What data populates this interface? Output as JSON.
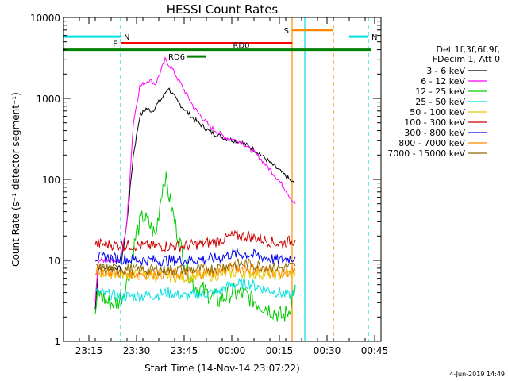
{
  "chart_data": {
    "type": "line",
    "title": "HESSI Count Rates",
    "xlabel": "Start Time (14-Nov-14 23:07:22)",
    "ylabel": "Count Rate (s⁻¹ detector segment⁻¹)",
    "yscale": "log",
    "ylim": [
      1,
      10000
    ],
    "xlim": [
      "23:07",
      "00:47"
    ],
    "x_ticks": [
      "23:15",
      "23:30",
      "23:45",
      "00:00",
      "00:15",
      "00:30",
      "00:45"
    ],
    "y_ticks": [
      "1",
      "10",
      "100",
      "1000",
      "10000"
    ],
    "grid": false,
    "legend_title": [
      "Det 1f,3f,6f,9f,",
      "FDecim 1, Att 0"
    ],
    "legend_position": "right",
    "date_stamp": "4-Jun-2019 14:49",
    "series": [
      {
        "name": "3 - 6 keV",
        "color": "#000000",
        "x": [
          "23:17",
          "23:18",
          "23:19",
          "23:21",
          "23:23",
          "23:25",
          "23:27",
          "23:29",
          "23:31",
          "23:33",
          "23:35",
          "23:36",
          "23:38",
          "23:40",
          "23:43",
          "23:48",
          "23:53",
          "23:58",
          "00:03",
          "00:08",
          "00:13",
          "00:17",
          "00:19",
          "00:20"
        ],
        "values": [
          2.5,
          8,
          8,
          8,
          8,
          8,
          30,
          200,
          600,
          750,
          700,
          800,
          1000,
          1350,
          900,
          560,
          390,
          320,
          290,
          220,
          150,
          110,
          92,
          90
        ]
      },
      {
        "name": "6 - 12 keV",
        "color": "#ff00ff",
        "x": [
          "23:17",
          "23:18",
          "23:21",
          "23:25",
          "23:27",
          "23:29",
          "23:31",
          "23:34",
          "23:36",
          "23:39",
          "23:41",
          "23:44",
          "23:48",
          "23:53",
          "23:58",
          "00:03",
          "00:08",
          "00:13",
          "00:17",
          "00:19",
          "00:20"
        ],
        "values": [
          3,
          10,
          10,
          10,
          30,
          500,
          1400,
          1700,
          1500,
          3000,
          2400,
          1500,
          780,
          450,
          330,
          290,
          200,
          120,
          75,
          55,
          50
        ]
      },
      {
        "name": "12 - 25 keV",
        "color": "#00cc00",
        "x": [
          "23:17",
          "23:18",
          "23:21",
          "23:24",
          "23:26",
          "23:28",
          "23:30",
          "23:32",
          "23:34",
          "23:36",
          "23:38",
          "23:39",
          "23:40",
          "23:42",
          "23:45",
          "23:48",
          "23:52",
          "23:56",
          "00:00",
          "00:04",
          "00:08",
          "00:12",
          "00:16",
          "00:18",
          "00:20"
        ],
        "values": [
          2.2,
          4,
          3,
          3,
          4,
          8,
          22,
          35,
          28,
          20,
          75,
          110,
          70,
          30,
          10,
          5,
          4,
          3.2,
          4,
          3.8,
          3,
          2.5,
          2,
          2.4,
          5
        ]
      },
      {
        "name": "25 - 50 keV",
        "color": "#00e0e0",
        "x": [
          "23:17",
          "23:21",
          "23:25",
          "23:30",
          "23:35",
          "23:40",
          "23:45",
          "23:50",
          "23:55",
          "00:00",
          "00:05",
          "00:10",
          "00:15",
          "00:18",
          "00:20"
        ],
        "values": [
          4,
          3.8,
          3.6,
          3.6,
          3.7,
          4,
          3.6,
          3.8,
          4,
          5,
          5.2,
          4.5,
          4,
          3.6,
          4.5
        ]
      },
      {
        "name": "50 - 100 keV",
        "color": "#e8c800",
        "x": [
          "23:17",
          "23:25",
          "23:35",
          "23:45",
          "23:55",
          "00:00",
          "00:05",
          "00:10",
          "00:15",
          "00:20"
        ],
        "values": [
          7,
          6.8,
          6.5,
          6.2,
          6.5,
          7,
          7,
          6.8,
          6.5,
          7
        ]
      },
      {
        "name": "100 - 300 keV",
        "color": "#cc0000",
        "x": [
          "23:17",
          "23:25",
          "23:35",
          "23:45",
          "23:55",
          "00:00",
          "00:05",
          "00:10",
          "00:15",
          "00:20"
        ],
        "values": [
          16,
          15.5,
          15,
          15,
          17,
          20,
          20,
          18,
          16,
          18
        ]
      },
      {
        "name": "300 - 800 keV",
        "color": "#0000ee",
        "x": [
          "23:17",
          "23:25",
          "23:35",
          "23:45",
          "23:55",
          "00:00",
          "00:05",
          "00:10",
          "00:15",
          "00:20"
        ],
        "values": [
          11,
          10.5,
          10,
          10,
          10.5,
          12,
          12,
          11,
          10,
          11
        ]
      },
      {
        "name": "800 - 7000 keV",
        "color": "#ff8800",
        "x": [
          "23:17",
          "23:25",
          "23:35",
          "23:45",
          "23:55",
          "00:00",
          "00:05",
          "00:10",
          "00:15",
          "00:20"
        ],
        "values": [
          7.5,
          7,
          6.8,
          6.8,
          7.2,
          8,
          8,
          7.5,
          7,
          7.5
        ]
      },
      {
        "name": "7000 - 15000 keV",
        "color": "#8b6a00",
        "x": [
          "23:17",
          "23:25",
          "23:35",
          "23:45",
          "23:55",
          "00:00",
          "00:05",
          "00:10",
          "00:15",
          "00:20"
        ],
        "values": [
          8,
          7.8,
          7.6,
          7.6,
          8,
          9,
          9,
          8.5,
          8,
          8.5
        ]
      }
    ],
    "annotations": {
      "flags": [
        {
          "label": "N",
          "color": "#00e0e0",
          "start": "23:07",
          "end": "23:25",
          "level": 5800
        },
        {
          "label": "N",
          "color": "#00e0e0",
          "start": "00:37",
          "end": "00:43",
          "level": 5800
        },
        {
          "label": "F",
          "color": "#ff0000",
          "start": "23:25",
          "end": "00:19",
          "level": 4800
        },
        {
          "label": "S",
          "color": "#ff8800",
          "start": "00:19",
          "end": "00:32",
          "level": 7000
        },
        {
          "label": "RD0",
          "color": "#008000",
          "start": "23:07",
          "end": "00:44",
          "level": 4000
        },
        {
          "label": "RD6",
          "color": "#008000",
          "start": "23:46",
          "end": "23:52",
          "level": 3300
        }
      ],
      "vlines": [
        {
          "time": "23:07",
          "color": "#00e0e0",
          "style": "solid"
        },
        {
          "time": "23:25",
          "color": "#00e0e0",
          "style": "dashed"
        },
        {
          "time": "00:19",
          "color": "#ff8800",
          "style": "solid"
        },
        {
          "time": "00:23",
          "color": "#00e0e0",
          "style": "solid"
        },
        {
          "time": "00:32",
          "color": "#ff8800",
          "style": "dashed"
        },
        {
          "time": "00:43",
          "color": "#00e0e0",
          "style": "dashed"
        }
      ]
    }
  }
}
